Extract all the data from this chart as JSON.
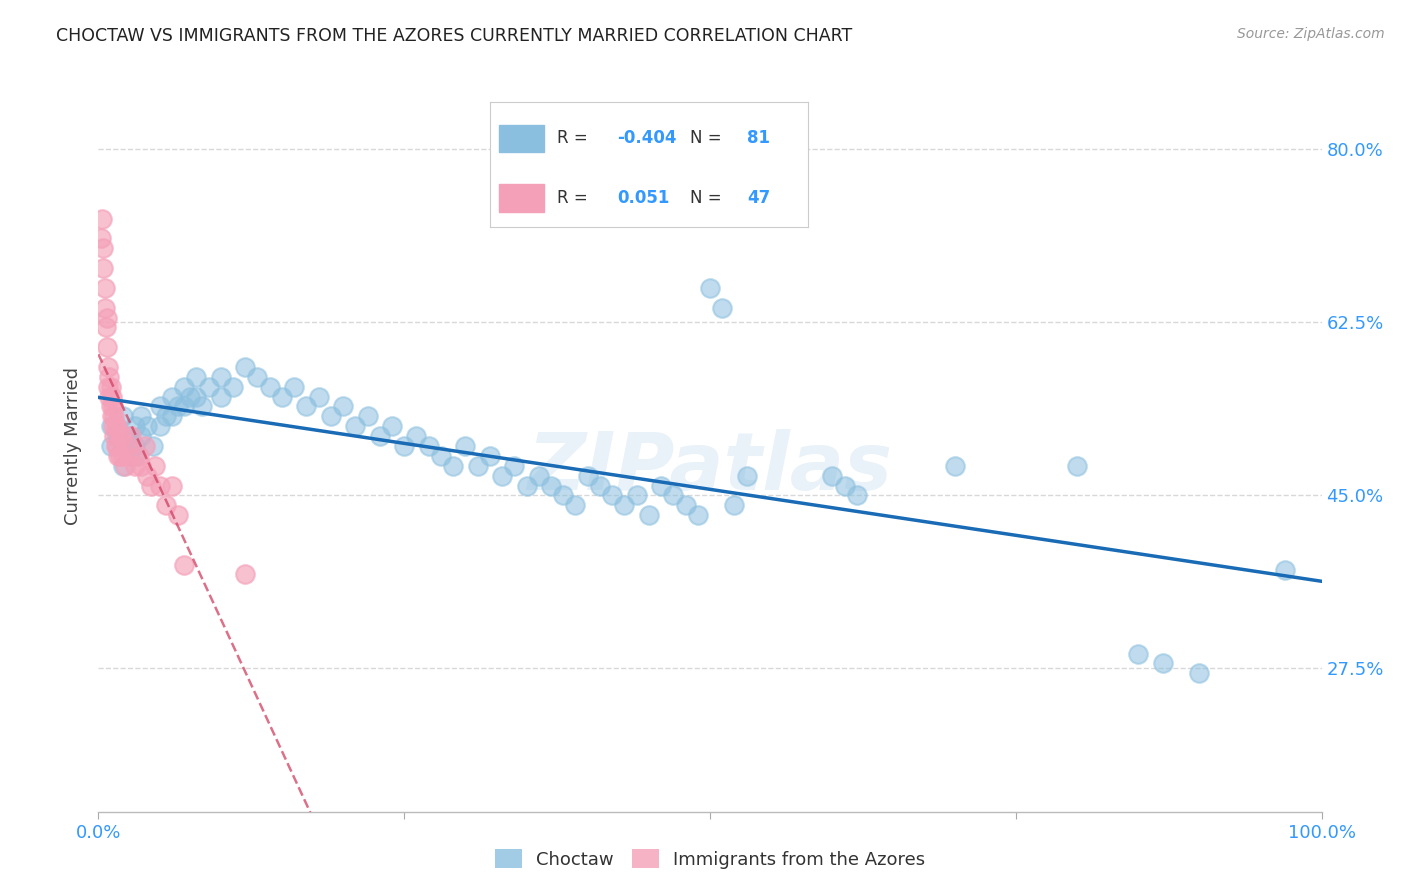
{
  "title": "CHOCTAW VS IMMIGRANTS FROM THE AZORES CURRENTLY MARRIED CORRELATION CHART",
  "source": "Source: ZipAtlas.com",
  "ylabel": "Currently Married",
  "choctaw_color": "#8bbfdf",
  "azores_color": "#f4a0b8",
  "choctaw_line_color": "#1a6bb5",
  "azores_line_color": "#d04060",
  "background_color": "#ffffff",
  "grid_color": "#d8d8d8",
  "title_color": "#222222",
  "axis_label_color": "#444444",
  "tick_color": "#3399ff",
  "source_color": "#999999",
  "watermark": "ZIPatlas",
  "legend_R1": "-0.404",
  "legend_N1": "81",
  "legend_R2": "0.051",
  "legend_N2": "47",
  "xlim": [
    0.0,
    1.0
  ],
  "ylim": [
    0.13,
    0.87
  ],
  "yticks": [
    0.275,
    0.45,
    0.625,
    0.8
  ],
  "ytick_labels": [
    "27.5%",
    "45.0%",
    "62.5%",
    "80.0%"
  ],
  "choctaw_x": [
    0.01,
    0.01,
    0.015,
    0.02,
    0.02,
    0.02,
    0.025,
    0.03,
    0.03,
    0.03,
    0.035,
    0.035,
    0.04,
    0.045,
    0.05,
    0.05,
    0.055,
    0.06,
    0.06,
    0.065,
    0.07,
    0.07,
    0.075,
    0.08,
    0.08,
    0.085,
    0.09,
    0.1,
    0.1,
    0.11,
    0.12,
    0.13,
    0.14,
    0.15,
    0.16,
    0.17,
    0.18,
    0.19,
    0.2,
    0.21,
    0.22,
    0.23,
    0.24,
    0.25,
    0.26,
    0.27,
    0.28,
    0.29,
    0.3,
    0.31,
    0.32,
    0.33,
    0.34,
    0.35,
    0.36,
    0.37,
    0.38,
    0.39,
    0.4,
    0.41,
    0.42,
    0.43,
    0.44,
    0.45,
    0.46,
    0.47,
    0.48,
    0.49,
    0.5,
    0.51,
    0.52,
    0.53,
    0.6,
    0.61,
    0.62,
    0.7,
    0.8,
    0.85,
    0.87,
    0.9,
    0.97
  ],
  "choctaw_y": [
    0.52,
    0.5,
    0.51,
    0.53,
    0.5,
    0.48,
    0.51,
    0.52,
    0.5,
    0.49,
    0.53,
    0.51,
    0.52,
    0.5,
    0.54,
    0.52,
    0.53,
    0.55,
    0.53,
    0.54,
    0.56,
    0.54,
    0.55,
    0.57,
    0.55,
    0.54,
    0.56,
    0.57,
    0.55,
    0.56,
    0.58,
    0.57,
    0.56,
    0.55,
    0.56,
    0.54,
    0.55,
    0.53,
    0.54,
    0.52,
    0.53,
    0.51,
    0.52,
    0.5,
    0.51,
    0.5,
    0.49,
    0.48,
    0.5,
    0.48,
    0.49,
    0.47,
    0.48,
    0.46,
    0.47,
    0.46,
    0.45,
    0.44,
    0.47,
    0.46,
    0.45,
    0.44,
    0.45,
    0.43,
    0.46,
    0.45,
    0.44,
    0.43,
    0.66,
    0.64,
    0.44,
    0.47,
    0.47,
    0.46,
    0.45,
    0.48,
    0.48,
    0.29,
    0.28,
    0.27,
    0.375
  ],
  "azores_x": [
    0.002,
    0.003,
    0.004,
    0.004,
    0.005,
    0.005,
    0.006,
    0.007,
    0.007,
    0.008,
    0.008,
    0.009,
    0.009,
    0.01,
    0.01,
    0.011,
    0.011,
    0.012,
    0.012,
    0.013,
    0.013,
    0.014,
    0.014,
    0.015,
    0.015,
    0.016,
    0.017,
    0.018,
    0.019,
    0.02,
    0.022,
    0.023,
    0.025,
    0.027,
    0.03,
    0.033,
    0.035,
    0.038,
    0.04,
    0.043,
    0.046,
    0.05,
    0.055,
    0.06,
    0.065,
    0.07,
    0.12
  ],
  "azores_y": [
    0.71,
    0.73,
    0.7,
    0.68,
    0.66,
    0.64,
    0.62,
    0.6,
    0.63,
    0.58,
    0.56,
    0.55,
    0.57,
    0.54,
    0.56,
    0.53,
    0.55,
    0.52,
    0.54,
    0.51,
    0.53,
    0.5,
    0.52,
    0.5,
    0.52,
    0.49,
    0.51,
    0.49,
    0.51,
    0.49,
    0.48,
    0.5,
    0.49,
    0.51,
    0.48,
    0.49,
    0.48,
    0.5,
    0.47,
    0.46,
    0.48,
    0.46,
    0.44,
    0.46,
    0.43,
    0.38,
    0.37
  ]
}
